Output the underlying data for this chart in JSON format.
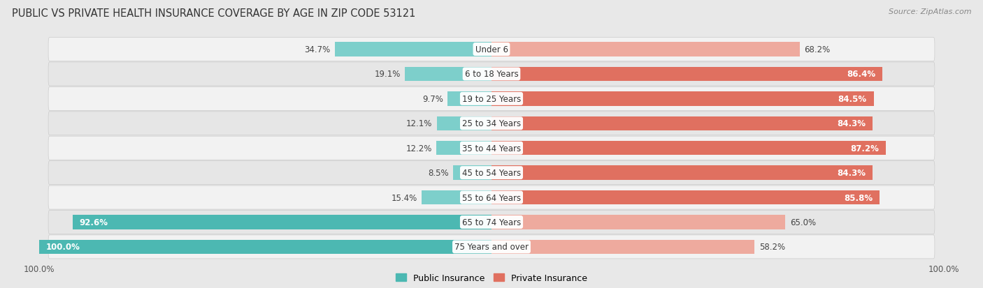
{
  "title": "PUBLIC VS PRIVATE HEALTH INSURANCE COVERAGE BY AGE IN ZIP CODE 53121",
  "source": "Source: ZipAtlas.com",
  "categories": [
    "Under 6",
    "6 to 18 Years",
    "19 to 25 Years",
    "25 to 34 Years",
    "35 to 44 Years",
    "45 to 54 Years",
    "55 to 64 Years",
    "65 to 74 Years",
    "75 Years and over"
  ],
  "public_values": [
    34.7,
    19.1,
    9.7,
    12.1,
    12.2,
    8.5,
    15.4,
    92.6,
    100.0
  ],
  "private_values": [
    68.2,
    86.4,
    84.5,
    84.3,
    87.2,
    84.3,
    85.8,
    65.0,
    58.2
  ],
  "public_color_strong": "#4cb8b2",
  "public_color_light": "#7dcfcb",
  "private_color_strong": "#e07060",
  "private_color_light": "#eeaa9e",
  "bg_color": "#e8e8e8",
  "row_colors": [
    "#f2f2f2",
    "#e6e6e6"
  ],
  "axis_max": 100.0,
  "bar_height": 0.58,
  "title_fontsize": 10.5,
  "value_fontsize": 8.5,
  "legend_fontsize": 9,
  "category_fontsize": 8.5,
  "source_fontsize": 8
}
